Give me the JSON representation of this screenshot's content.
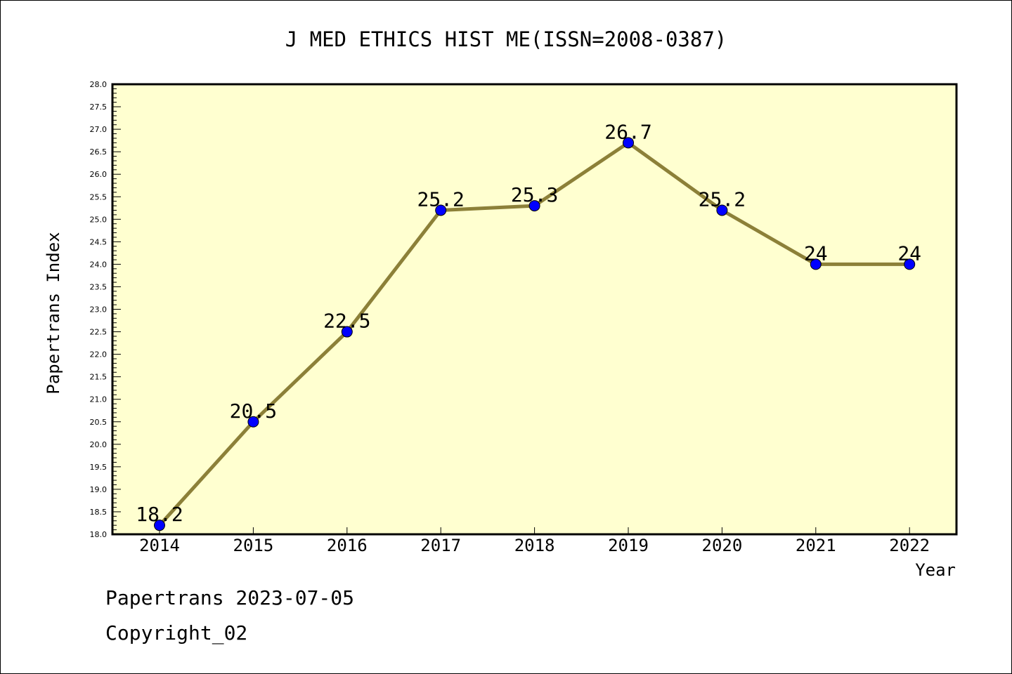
{
  "chart_data": {
    "type": "line",
    "title": "J MED ETHICS HIST ME(ISSN=2008-0387)",
    "xlabel": "Year",
    "ylabel": "Papertrans Index",
    "categories": [
      "2014",
      "2015",
      "2016",
      "2017",
      "2018",
      "2019",
      "2020",
      "2021",
      "2022"
    ],
    "series": [
      {
        "values": [
          18.2,
          20.5,
          22.5,
          25.2,
          25.3,
          26.7,
          25.2,
          24,
          24
        ],
        "data_labels": [
          "18.2",
          "20.5",
          "22.5",
          "25.2",
          "25.3",
          "26.7",
          "25.2",
          "24",
          "24"
        ]
      }
    ],
    "ylim": [
      18.0,
      28.0
    ],
    "ytick_step": 0.5,
    "grid": false,
    "colors": {
      "plot_background": "#ffffd0",
      "line": "#8c8038",
      "marker": "#0000ff",
      "axis": "#000000"
    }
  },
  "footer": {
    "line1": "Papertrans 2023-07-05",
    "line2": "Copyright_02"
  }
}
